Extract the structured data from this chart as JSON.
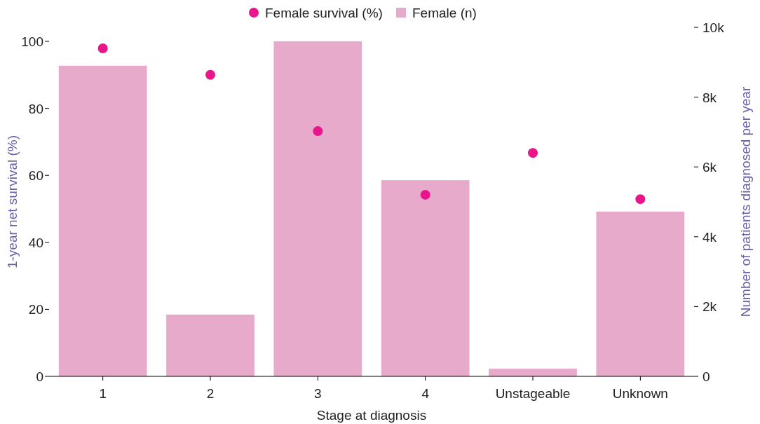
{
  "chart_data": {
    "type": "bar",
    "xlabel": "Stage at diagnosis",
    "ylabel": "1-year net survival (%)",
    "y2label": "Number of patients diagnosed per year",
    "categories": [
      "1",
      "2",
      "3",
      "4",
      "Unstageable",
      "Unknown"
    ],
    "series": [
      {
        "name": "Female survival (%)",
        "type": "scatter",
        "color": "#e8168a",
        "values": [
          97.9,
          90,
          73.2,
          54.2,
          66.7,
          52.9
        ]
      },
      {
        "name": "Female (n)",
        "axis": "y2",
        "color": "#e8aacb",
        "values": [
          8900,
          1770,
          9600,
          5620,
          220,
          4720
        ]
      }
    ],
    "ylim": [
      0,
      100
    ],
    "yticks": [
      0,
      20,
      40,
      60,
      80,
      100
    ],
    "y2lim": [
      0,
      10000
    ],
    "y2ticks": [
      0,
      {
        "value": 2000,
        "label": "2k"
      },
      {
        "value": 4000,
        "label": "4k"
      },
      {
        "value": 6000,
        "label": "6k"
      },
      {
        "value": 8000,
        "label": "8k"
      },
      {
        "value": 10000,
        "label": "10k"
      }
    ],
    "legend": "top",
    "marker": "circle",
    "grid": false
  }
}
